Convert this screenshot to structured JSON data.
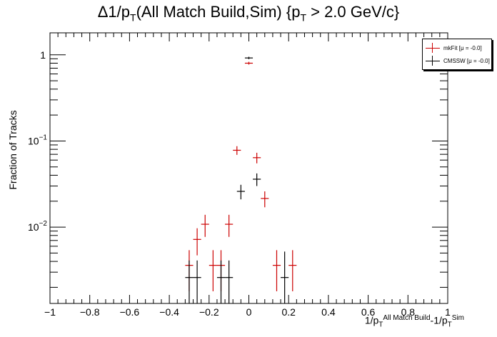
{
  "chart_data": {
    "type": "scatter",
    "title_main": "Δ1/p",
    "title_sub1": "T",
    "title_mid": "(All Match Build,Sim) {p",
    "title_sub2": "T",
    "title_end": " > 2.0 GeV/c}",
    "ylabel": "Fraction of Tracks",
    "xlabel_main": "1/p",
    "xlabel_sub1": "T",
    "xlabel_sup1": "All Match Build",
    "xlabel_mid": "-1/p",
    "xlabel_sub2": "T",
    "xlabel_sup2": "Sim",
    "xlim": [
      -1,
      1
    ],
    "ylim": [
      0.0013,
      1.8
    ],
    "yscale": "log",
    "grid": false,
    "legend_position": "top-right",
    "x_ticks": [
      "−1",
      "−0.8",
      "−0.6",
      "−0.4",
      "−0.2",
      "0",
      "0.2",
      "0.4",
      "0.6",
      "0.8",
      "1"
    ],
    "y_ticks": [
      {
        "base": "10",
        "exp": "−2",
        "value": 0.01
      },
      {
        "base": "10",
        "exp": "−1",
        "value": 0.1
      },
      {
        "base": "1",
        "exp": "",
        "value": 1
      }
    ],
    "bin_width": 0.04,
    "series": [
      {
        "name": "mkFit  [μ = -0.0]",
        "color": "#cc0000",
        "points": [
          {
            "x": -0.3,
            "y": 0.0036,
            "ylo": 0.0018,
            "yhi": 0.0054
          },
          {
            "x": -0.26,
            "y": 0.0072,
            "ylo": 0.0047,
            "yhi": 0.0097
          },
          {
            "x": -0.22,
            "y": 0.0108,
            "ylo": 0.0077,
            "yhi": 0.0139
          },
          {
            "x": -0.18,
            "y": 0.0036,
            "ylo": 0.0018,
            "yhi": 0.0054
          },
          {
            "x": -0.14,
            "y": 0.0036,
            "ylo": 0.0018,
            "yhi": 0.0054
          },
          {
            "x": -0.1,
            "y": 0.0108,
            "ylo": 0.0077,
            "yhi": 0.0139
          },
          {
            "x": -0.06,
            "y": 0.078,
            "ylo": 0.069,
            "yhi": 0.087
          },
          {
            "x": -0.02,
            "y": 0.0,
            "ylo": 0.0,
            "yhi": 0.0
          },
          {
            "x": 0.0,
            "y": 0.8,
            "ylo": 0.77,
            "yhi": 0.83
          },
          {
            "x": 0.04,
            "y": 0.064,
            "ylo": 0.055,
            "yhi": 0.073
          },
          {
            "x": 0.08,
            "y": 0.0215,
            "ylo": 0.017,
            "yhi": 0.026
          },
          {
            "x": 0.14,
            "y": 0.0036,
            "ylo": 0.0018,
            "yhi": 0.0054
          },
          {
            "x": 0.22,
            "y": 0.0036,
            "ylo": 0.0018,
            "yhi": 0.0054
          }
        ]
      },
      {
        "name": "CMSSW  [μ = -0.0]",
        "color": "#000000",
        "points": [
          {
            "x": -0.3,
            "y": 0.0026,
            "ylo": 0.0013,
            "yhi": 0.0041
          },
          {
            "x": -0.26,
            "y": 0.0026,
            "ylo": 0.0013,
            "yhi": 0.0041
          },
          {
            "x": -0.14,
            "y": 0.0026,
            "ylo": 0.0013,
            "yhi": 0.0041
          },
          {
            "x": -0.1,
            "y": 0.0026,
            "ylo": 0.0013,
            "yhi": 0.0041
          },
          {
            "x": -0.04,
            "y": 0.026,
            "ylo": 0.021,
            "yhi": 0.031
          },
          {
            "x": 0.0,
            "y": 0.92,
            "ylo": 0.89,
            "yhi": 0.95
          },
          {
            "x": 0.04,
            "y": 0.036,
            "ylo": 0.03,
            "yhi": 0.042
          },
          {
            "x": 0.18,
            "y": 0.0026,
            "ylo": 0.0013,
            "yhi": 0.0052
          }
        ]
      }
    ]
  }
}
